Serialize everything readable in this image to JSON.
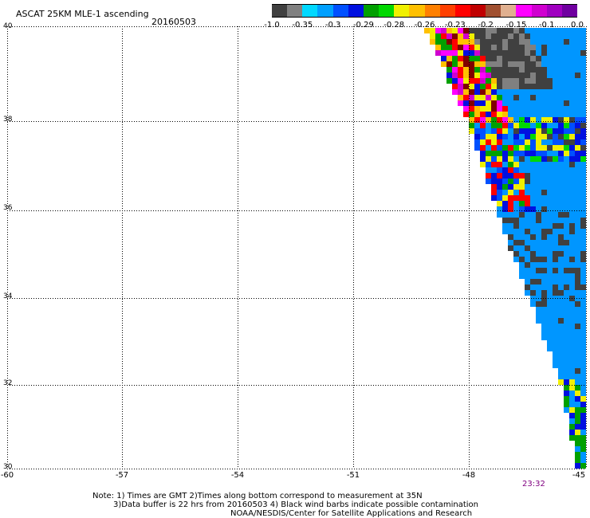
{
  "title": "ASCAT 25KM MLE-1 ascending",
  "date": "20160503",
  "colorbar": {
    "labels": [
      "-1.0",
      "-0.35",
      "-0.3",
      "-0.29",
      "-0.28",
      "-0.26",
      "-0.23",
      "-0.2",
      "-0.15",
      "-0.1",
      "0.0"
    ],
    "segments": [
      {
        "color": "#404040"
      },
      {
        "color": "#808080"
      },
      {
        "color": "#00d8ff"
      },
      {
        "color": "#00a0ff"
      },
      {
        "color": "#0050ff"
      },
      {
        "color": "#0010e0"
      },
      {
        "color": "#00a000"
      },
      {
        "color": "#00d800"
      },
      {
        "color": "#f0f000"
      },
      {
        "color": "#ffc000"
      },
      {
        "color": "#ff8000"
      },
      {
        "color": "#ff4000"
      },
      {
        "color": "#ff0000"
      },
      {
        "color": "#c00000"
      },
      {
        "color": "#a05030"
      },
      {
        "color": "#e0b090"
      },
      {
        "color": "#ff00ff"
      },
      {
        "color": "#d000d0"
      },
      {
        "color": "#a000c0"
      },
      {
        "color": "#7000a0"
      }
    ]
  },
  "lat_labels": [
    "40",
    "38",
    "36",
    "34",
    "32",
    "30"
  ],
  "lon_labels": [
    "-60",
    "-57",
    "-54",
    "-51",
    "-48",
    "-45"
  ],
  "time_label": "23:32",
  "notes": [
    "Note: 1) Times are GMT 2)Times along bottom correspond to measurement at 35N",
    "3)Data buffer is 22 hrs from 20160503 4) Black wind barbs indicate possible contamination",
    "NOAA/NESDIS/Center for Satellite Applications and Research"
  ],
  "colors": {
    "dominant_blue": "#0096ff",
    "dark_gray": "#404040",
    "time_label": "#800080"
  }
}
